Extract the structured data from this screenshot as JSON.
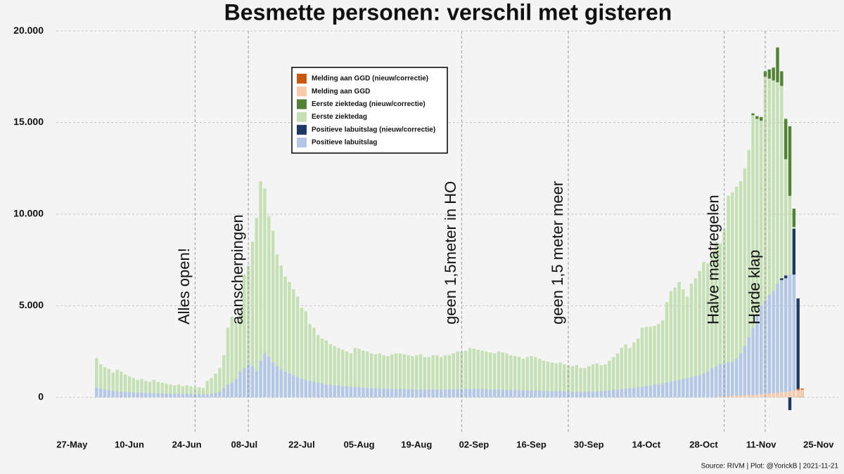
{
  "chart_data": {
    "type": "bar",
    "title": "Besmette personen: verschil met gisteren",
    "source": "Source: RIVM | Plot: @YorickB |  2021-11-21",
    "xlim": [
      "23-May",
      "30-Nov"
    ],
    "xticks": [
      "27-May",
      "10-Jun",
      "24-Jun",
      "08-Jul",
      "22-Jul",
      "05-Aug",
      "19-Aug",
      "02-Sep",
      "16-Sep",
      "30-Sep",
      "14-Oct",
      "28-Oct",
      "11-Nov",
      "25-Nov"
    ],
    "ylim": [
      -2000,
      21000
    ],
    "yticks": [
      0,
      {
        "value": 5000,
        "label": "5.000"
      },
      {
        "value": 10000,
        "label": "10.000"
      },
      {
        "value": 15000,
        "label": "15.000"
      },
      {
        "value": 20000,
        "label": "20.000"
      }
    ],
    "grid": true,
    "annotations": [
      {
        "text": "Alles open!",
        "x": "26-Jun"
      },
      {
        "text": "aanscherpingen",
        "x": "09-Jul"
      },
      {
        "text": "geen 1,5meter in HO",
        "x": "30-Aug"
      },
      {
        "text": "geen 1,5 meter meer",
        "x": "25-Sep"
      },
      {
        "text": "Halve maatregelen",
        "x": "02-Nov"
      },
      {
        "text": "Harde klap",
        "x": "12-Nov"
      }
    ],
    "x": [
      "02-Jun",
      "03-Jun",
      "04-Jun",
      "05-Jun",
      "06-Jun",
      "07-Jun",
      "08-Jun",
      "09-Jun",
      "10-Jun",
      "11-Jun",
      "12-Jun",
      "13-Jun",
      "14-Jun",
      "15-Jun",
      "16-Jun",
      "17-Jun",
      "18-Jun",
      "19-Jun",
      "20-Jun",
      "21-Jun",
      "22-Jun",
      "23-Jun",
      "24-Jun",
      "25-Jun",
      "26-Jun",
      "27-Jun",
      "28-Jun",
      "29-Jun",
      "30-Jun",
      "01-Jul",
      "02-Jul",
      "03-Jul",
      "04-Jul",
      "05-Jul",
      "06-Jul",
      "07-Jul",
      "08-Jul",
      "09-Jul",
      "10-Jul",
      "11-Jul",
      "12-Jul",
      "13-Jul",
      "14-Jul",
      "15-Jul",
      "16-Jul",
      "17-Jul",
      "18-Jul",
      "19-Jul",
      "20-Jul",
      "21-Jul",
      "22-Jul",
      "23-Jul",
      "24-Jul",
      "25-Jul",
      "26-Jul",
      "27-Jul",
      "28-Jul",
      "29-Jul",
      "30-Jul",
      "31-Jul",
      "01-Aug",
      "02-Aug",
      "03-Aug",
      "04-Aug",
      "05-Aug",
      "06-Aug",
      "07-Aug",
      "08-Aug",
      "09-Aug",
      "10-Aug",
      "11-Aug",
      "12-Aug",
      "13-Aug",
      "14-Aug",
      "15-Aug",
      "16-Aug",
      "17-Aug",
      "18-Aug",
      "19-Aug",
      "20-Aug",
      "21-Aug",
      "22-Aug",
      "23-Aug",
      "24-Aug",
      "25-Aug",
      "26-Aug",
      "27-Aug",
      "28-Aug",
      "29-Aug",
      "30-Aug",
      "31-Aug",
      "01-Sep",
      "02-Sep",
      "03-Sep",
      "04-Sep",
      "05-Sep",
      "06-Sep",
      "07-Sep",
      "08-Sep",
      "09-Sep",
      "10-Sep",
      "11-Sep",
      "12-Sep",
      "13-Sep",
      "14-Sep",
      "15-Sep",
      "16-Sep",
      "17-Sep",
      "18-Sep",
      "19-Sep",
      "20-Sep",
      "21-Sep",
      "22-Sep",
      "23-Sep",
      "24-Sep",
      "25-Sep",
      "26-Sep",
      "27-Sep",
      "28-Sep",
      "29-Sep",
      "30-Sep",
      "01-Oct",
      "02-Oct",
      "03-Oct",
      "04-Oct",
      "05-Oct",
      "06-Oct",
      "07-Oct",
      "08-Oct",
      "09-Oct",
      "10-Oct",
      "11-Oct",
      "12-Oct",
      "13-Oct",
      "14-Oct",
      "15-Oct",
      "16-Oct",
      "17-Oct",
      "18-Oct",
      "19-Oct",
      "20-Oct",
      "21-Oct",
      "22-Oct",
      "23-Oct",
      "24-Oct",
      "25-Oct",
      "26-Oct",
      "27-Oct",
      "28-Oct",
      "29-Oct",
      "30-Oct",
      "31-Oct",
      "01-Nov",
      "02-Nov",
      "03-Nov",
      "04-Nov",
      "05-Nov",
      "06-Nov",
      "07-Nov",
      "08-Nov",
      "09-Nov",
      "10-Nov",
      "11-Nov",
      "12-Nov",
      "13-Nov",
      "14-Nov",
      "15-Nov",
      "16-Nov",
      "17-Nov",
      "18-Nov",
      "19-Nov",
      "20-Nov",
      "21-Nov"
    ],
    "series": [
      {
        "name": "Melding aan GGD (nieuw/correctie)",
        "color": "#c55a11",
        "x": [
          "20-Nov",
          "21-Nov"
        ],
        "values": [
          80,
          60
        ]
      },
      {
        "name": "Melding aan GGD",
        "color": "#f8cbad",
        "x": [
          "01-Nov",
          "02-Nov",
          "03-Nov",
          "04-Nov",
          "05-Nov",
          "06-Nov",
          "07-Nov",
          "08-Nov",
          "09-Nov",
          "10-Nov",
          "11-Nov",
          "12-Nov",
          "13-Nov",
          "14-Nov",
          "15-Nov",
          "16-Nov",
          "17-Nov",
          "18-Nov",
          "19-Nov",
          "20-Nov",
          "21-Nov"
        ],
        "values": [
          50,
          60,
          70,
          80,
          90,
          100,
          110,
          120,
          130,
          150,
          170,
          190,
          210,
          230,
          250,
          280,
          300,
          330,
          380,
          400,
          420
        ]
      },
      {
        "name": "Eerste ziektedag (nieuw/correctie)",
        "color": "#548235",
        "x": [
          "09-Nov",
          "10-Nov",
          "11-Nov",
          "12-Nov",
          "13-Nov",
          "14-Nov",
          "15-Nov",
          "16-Nov",
          "17-Nov",
          "18-Nov",
          "19-Nov"
        ],
        "values": [
          100,
          150,
          200,
          300,
          500,
          700,
          1900,
          800,
          2200,
          3800,
          1000
        ]
      },
      {
        "name": "Eerste ziektedag",
        "color": "#c5e0b4",
        "values": [
          2150,
          1800,
          1650,
          1550,
          1350,
          1500,
          1400,
          1250,
          1150,
          1050,
          950,
          1000,
          900,
          850,
          950,
          850,
          800,
          750,
          700,
          650,
          700,
          600,
          650,
          600,
          550,
          550,
          500,
          900,
          1050,
          1300,
          1600,
          2300,
          3800,
          4400,
          4100,
          4600,
          6700,
          7200,
          8500,
          9800,
          11800,
          11400,
          9900,
          9100,
          7800,
          7200,
          6600,
          6300,
          5900,
          5500,
          4900,
          4700,
          4000,
          3800,
          3400,
          3200,
          3100,
          2900,
          2800,
          2700,
          2600,
          2500,
          2400,
          2700,
          2650,
          2550,
          2500,
          2400,
          2350,
          2400,
          2300,
          2250,
          2350,
          2400,
          2400,
          2350,
          2300,
          2250,
          2300,
          2350,
          2200,
          2200,
          2300,
          2300,
          2200,
          2300,
          2300,
          2400,
          2500,
          2500,
          2550,
          2700,
          2650,
          2600,
          2550,
          2500,
          2450,
          2400,
          2500,
          2450,
          2400,
          2300,
          2250,
          2200,
          2100,
          2200,
          2250,
          2200,
          2100,
          2000,
          1950,
          1900,
          1850,
          1900,
          1800,
          1750,
          1700,
          1750,
          1600,
          1600,
          1700,
          1800,
          1850,
          1750,
          1800,
          2000,
          2200,
          2400,
          2700,
          2900,
          2700,
          3000,
          3200,
          3800,
          3850,
          3850,
          3900,
          4000,
          4200,
          5200,
          5800,
          6000,
          6300,
          5900,
          5500,
          6200,
          6500,
          6900,
          7400,
          7300,
          7800,
          8500,
          8400,
          9200,
          11000,
          11200,
          11500,
          11800,
          12500,
          13500,
          15400,
          15200,
          15100,
          17500,
          17400,
          17300,
          17200,
          17000,
          13000,
          11000,
          9300,
          0,
          0
        ]
      },
      {
        "name": "Positieve labuitslag (nieuw/correctie)",
        "color": "#203864",
        "x": [
          "16-Nov",
          "17-Nov",
          "18-Nov",
          "19-Nov",
          "20-Nov",
          "21-Nov"
        ],
        "values": [
          100,
          150,
          -700,
          2500,
          5400,
          350
        ]
      },
      {
        "name": "Positieve labuitslag",
        "color": "#b4c7e7",
        "values": [
          550,
          480,
          420,
          400,
          350,
          320,
          300,
          300,
          280,
          260,
          250,
          260,
          240,
          230,
          220,
          230,
          220,
          200,
          200,
          190,
          200,
          180,
          190,
          180,
          170,
          170,
          160,
          150,
          200,
          250,
          300,
          500,
          700,
          800,
          1000,
          1400,
          1600,
          1800,
          1700,
          1400,
          2000,
          2400,
          2200,
          1900,
          1700,
          1500,
          1400,
          1300,
          1200,
          1100,
          1000,
          950,
          900,
          850,
          800,
          750,
          700,
          700,
          650,
          650,
          600,
          600,
          580,
          560,
          550,
          540,
          520,
          500,
          500,
          480,
          470,
          470,
          460,
          450,
          450,
          450,
          440,
          440,
          430,
          430,
          420,
          420,
          430,
          430,
          420,
          420,
          430,
          440,
          440,
          450,
          450,
          460,
          460,
          450,
          450,
          440,
          430,
          430,
          420,
          420,
          410,
          400,
          400,
          390,
          380,
          380,
          380,
          370,
          360,
          350,
          340,
          340,
          330,
          330,
          320,
          320,
          310,
          310,
          300,
          300,
          310,
          320,
          330,
          340,
          350,
          380,
          400,
          420,
          450,
          480,
          500,
          520,
          550,
          580,
          620,
          650,
          700,
          720,
          750,
          800,
          850,
          900,
          950,
          1000,
          1050,
          1100,
          1150,
          1200,
          1300,
          1400,
          1600,
          1700,
          1800,
          1850,
          1900,
          1950,
          2100,
          2400,
          2800,
          3300,
          3800,
          4500,
          5000,
          5300,
          5600,
          5800,
          6200,
          6400,
          6500,
          6700,
          6700,
          0,
          0
        ]
      }
    ]
  }
}
